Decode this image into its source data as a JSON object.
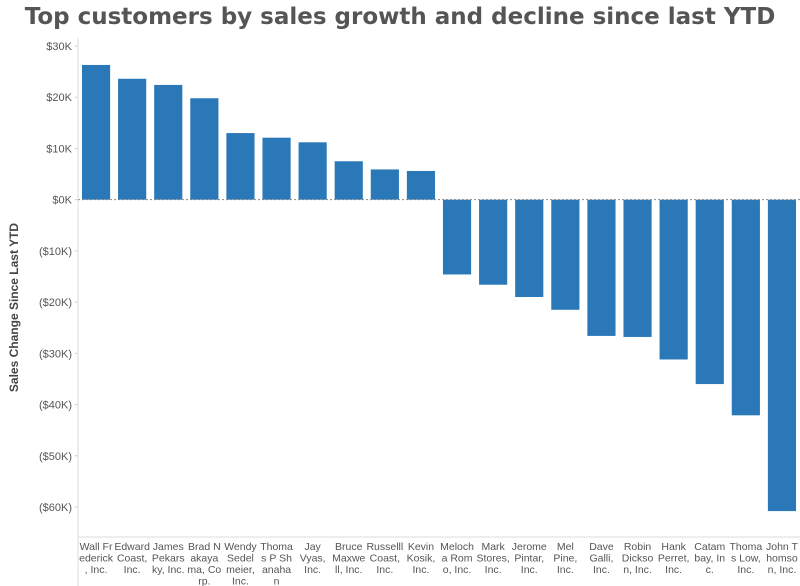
{
  "chart_data": {
    "type": "bar",
    "title": "Top customers by sales growth and decline since last YTD",
    "xlabel": "",
    "ylabel": "Sales Change Since Last YTD",
    "ylim": [
      -65000,
      30000
    ],
    "yticks": [
      30000,
      20000,
      10000,
      0,
      -10000,
      -20000,
      -30000,
      -40000,
      -50000,
      -60000
    ],
    "ytick_labels": [
      "$30K",
      "$20K",
      "$10K",
      "$0K",
      "($10K)",
      "($20K)",
      "($30K)",
      "($40K)",
      "($50K)",
      "($60K)"
    ],
    "categories": [
      [
        "Wall Fr",
        "ederick",
        ", Inc."
      ],
      [
        "Edward",
        "Coast,",
        "Inc."
      ],
      [
        "James",
        "Pekars",
        "ky, Inc."
      ],
      [
        "Brad N",
        "akaya",
        "ma, Co",
        "rp."
      ],
      [
        "Wendy",
        "Sedel",
        "meier,",
        "Inc."
      ],
      [
        "Thoma",
        "s P Sh",
        "anaha",
        "n"
      ],
      [
        "Jay",
        "Vyas,",
        "Inc."
      ],
      [
        "Bruce",
        "Maxwe",
        "ll, Inc."
      ],
      [
        "Russelll",
        "Coast,",
        "Inc."
      ],
      [
        "Kevin",
        "Kosik,",
        "Inc."
      ],
      [
        "Meloch",
        "a Rom",
        "o, Inc."
      ],
      [
        "Mark",
        "Stores,",
        "Inc."
      ],
      [
        "Jerome",
        "Pintar,",
        "Inc."
      ],
      [
        "Mel",
        "Pine,",
        "Inc."
      ],
      [
        "Dave",
        "Galli,",
        "Inc."
      ],
      [
        "Robin",
        "Dickso",
        "n, Inc."
      ],
      [
        "Hank",
        "Perret,",
        "Inc."
      ],
      [
        "Catam",
        "bay, In",
        "c."
      ],
      [
        "Thoma",
        "s Low,",
        "Inc."
      ],
      [
        "John T",
        "homso",
        "n, Inc."
      ]
    ],
    "values": [
      26300,
      23600,
      22400,
      19800,
      13000,
      12100,
      11200,
      7500,
      5900,
      5600,
      -14600,
      -16600,
      -19000,
      -21500,
      -26600,
      -26800,
      -31200,
      -36000,
      -42100,
      -60800
    ],
    "bar_color": "#2b78b8",
    "grid": false,
    "zero_line": true
  }
}
